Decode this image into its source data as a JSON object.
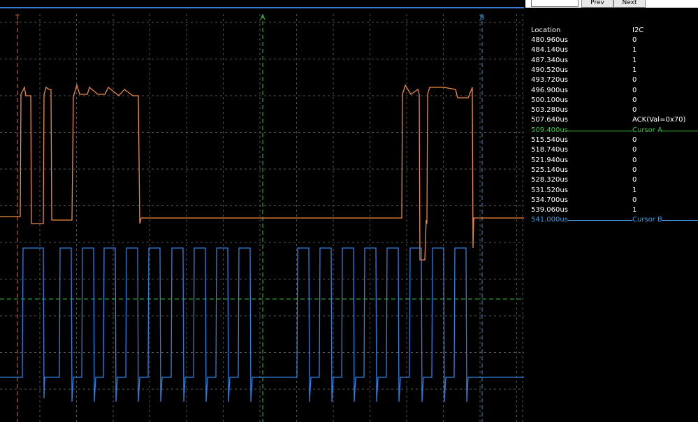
{
  "toolbar": {
    "prev": "Prev",
    "next": "Next"
  },
  "scope": {
    "trigger_label": "T",
    "cursor_a_label": "A",
    "cursor_b_label": "B"
  },
  "table": {
    "header": [
      "Location",
      "I2C"
    ],
    "rows": [
      [
        "480.960us",
        "0"
      ],
      [
        "484.140us",
        "1"
      ],
      [
        "487.340us",
        "1"
      ],
      [
        "490.520us",
        "1"
      ],
      [
        "493.720us",
        "0"
      ],
      [
        "496.900us",
        "0"
      ],
      [
        "500.100us",
        "0"
      ],
      [
        "503.280us",
        "0"
      ],
      [
        "507.640us",
        "ACK(Val=0x70)"
      ],
      [
        "509.400us",
        "Cursor A"
      ],
      [
        "515.540us",
        "0"
      ],
      [
        "518.740us",
        "0"
      ],
      [
        "521.940us",
        "0"
      ],
      [
        "525.140us",
        "0"
      ],
      [
        "528.320us",
        "0"
      ],
      [
        "531.520us",
        "1"
      ],
      [
        "534.700us",
        "0"
      ],
      [
        "539.060us",
        "1"
      ],
      [
        "541.000us",
        "Cursor B"
      ]
    ]
  }
}
